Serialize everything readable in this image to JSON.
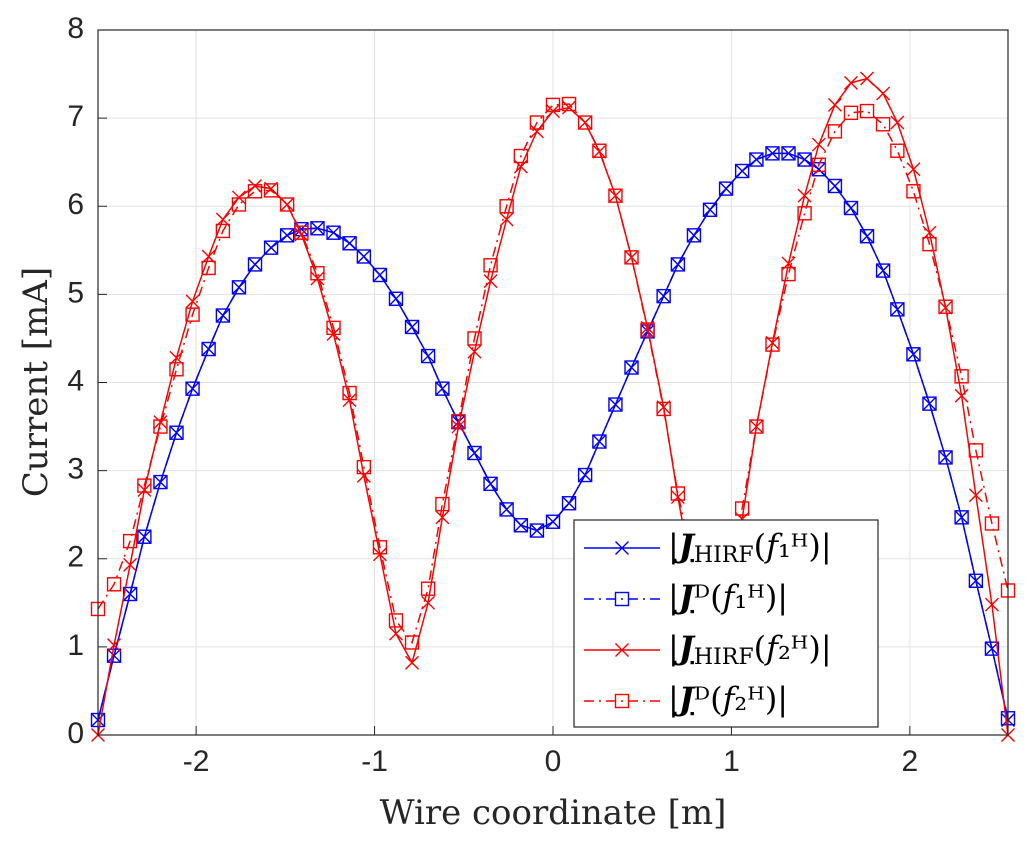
{
  "chart_data": {
    "type": "line",
    "xlabel": "Wire coordinate [m]",
    "ylabel": "Current [mA]",
    "x": [
      -2.55,
      -2.46,
      -2.37,
      -2.29,
      -2.2,
      -2.11,
      -2.02,
      -1.93,
      -1.85,
      -1.76,
      -1.67,
      -1.58,
      -1.49,
      -1.41,
      -1.32,
      -1.23,
      -1.14,
      -1.06,
      -0.97,
      -0.88,
      -0.79,
      -0.7,
      -0.62,
      -0.53,
      -0.44,
      -0.35,
      -0.26,
      -0.18,
      -0.09,
      0.0,
      0.09,
      0.18,
      0.26,
      0.35,
      0.44,
      0.53,
      0.62,
      0.7,
      0.79,
      0.88,
      0.97,
      1.06,
      1.14,
      1.23,
      1.32,
      1.41,
      1.49,
      1.58,
      1.67,
      1.76,
      1.85,
      1.93,
      2.02,
      2.11,
      2.2,
      2.29,
      2.37,
      2.46,
      2.55
    ],
    "series": [
      {
        "name": "|JHIRF(f₁ᴴ)|",
        "color": "#0000ff",
        "linestyle": "solid",
        "marker": "x",
        "values": [
          0.17,
          0.9,
          1.6,
          2.25,
          2.87,
          3.43,
          3.93,
          4.38,
          4.76,
          5.08,
          5.34,
          5.53,
          5.67,
          5.74,
          5.75,
          5.7,
          5.58,
          5.43,
          5.22,
          4.95,
          4.63,
          4.3,
          3.93,
          3.55,
          3.2,
          2.85,
          2.56,
          2.38,
          2.32,
          2.42,
          2.63,
          2.95,
          3.33,
          3.75,
          4.17,
          4.58,
          4.98,
          5.34,
          5.67,
          5.96,
          6.2,
          6.4,
          6.53,
          6.6,
          6.6,
          6.53,
          6.42,
          6.23,
          5.98,
          5.66,
          5.27,
          4.83,
          4.32,
          3.76,
          3.15,
          2.47,
          1.75,
          0.98,
          0.17
        ]
      },
      {
        "name": "|Jᴰ(f₁ᴴ)|",
        "color": "#0000ff",
        "linestyle": "dashdot",
        "marker": "square",
        "values": [
          0.17,
          0.9,
          1.6,
          2.25,
          2.87,
          3.43,
          3.93,
          4.38,
          4.76,
          5.08,
          5.34,
          5.53,
          5.67,
          5.74,
          5.75,
          5.7,
          5.58,
          5.43,
          5.22,
          4.95,
          4.63,
          4.3,
          3.93,
          3.55,
          3.2,
          2.85,
          2.56,
          2.38,
          2.32,
          2.42,
          2.63,
          2.95,
          3.33,
          3.75,
          4.17,
          4.58,
          4.98,
          5.34,
          5.67,
          5.96,
          6.2,
          6.4,
          6.53,
          6.6,
          6.6,
          6.53,
          6.42,
          6.23,
          5.98,
          5.66,
          5.27,
          4.83,
          4.32,
          3.76,
          3.15,
          2.47,
          1.75,
          0.98,
          0.19
        ]
      },
      {
        "name": "|JHIRF(f₂ᴴ)|",
        "color": "#ff0000",
        "linestyle": "solid",
        "marker": "x",
        "values": [
          0,
          1.02,
          1.93,
          2.78,
          3.55,
          4.28,
          4.92,
          5.43,
          5.85,
          6.1,
          6.23,
          6.2,
          6.02,
          5.68,
          5.18,
          4.55,
          3.8,
          2.94,
          2.05,
          1.15,
          0.82,
          1.5,
          2.47,
          3.5,
          4.35,
          5.15,
          5.85,
          6.45,
          6.85,
          7.08,
          7.12,
          6.95,
          6.62,
          6.12,
          5.42,
          4.62,
          3.72,
          2.7,
          1.7,
          1.0,
          1.5,
          2.45,
          3.5,
          4.45,
          5.35,
          6.12,
          6.7,
          7.15,
          7.4,
          7.45,
          7.28,
          6.95,
          6.42,
          5.7,
          4.85,
          3.85,
          2.72,
          1.48,
          0
        ]
      },
      {
        "name": "|Jᴰ(f₂ᴴ)|",
        "color": "#ff0000",
        "linestyle": "dashdot",
        "marker": "square",
        "values": [
          1.43,
          1.71,
          2.2,
          2.83,
          3.5,
          4.15,
          4.77,
          5.3,
          5.72,
          6.02,
          6.17,
          6.18,
          6.02,
          5.7,
          5.24,
          4.62,
          3.88,
          3.04,
          2.13,
          1.3,
          1.05,
          1.66,
          2.62,
          3.56,
          4.5,
          5.33,
          6.0,
          6.57,
          6.95,
          7.15,
          7.16,
          6.95,
          6.63,
          6.12,
          5.42,
          4.6,
          3.7,
          2.74,
          1.9,
          1.3,
          1.8,
          2.57,
          3.5,
          4.43,
          5.23,
          5.92,
          6.47,
          6.85,
          7.06,
          7.08,
          6.93,
          6.63,
          6.17,
          5.57,
          4.86,
          4.07,
          3.23,
          2.4,
          1.64
        ]
      }
    ],
    "xlim": [
      -2.55,
      2.55
    ],
    "xticks": [
      -2,
      -1,
      0,
      1,
      2
    ],
    "ylim": [
      0,
      8
    ],
    "yticks": [
      0,
      1,
      2,
      3,
      4,
      5,
      6,
      7,
      8
    ],
    "grid": true,
    "legend": "lower right"
  }
}
